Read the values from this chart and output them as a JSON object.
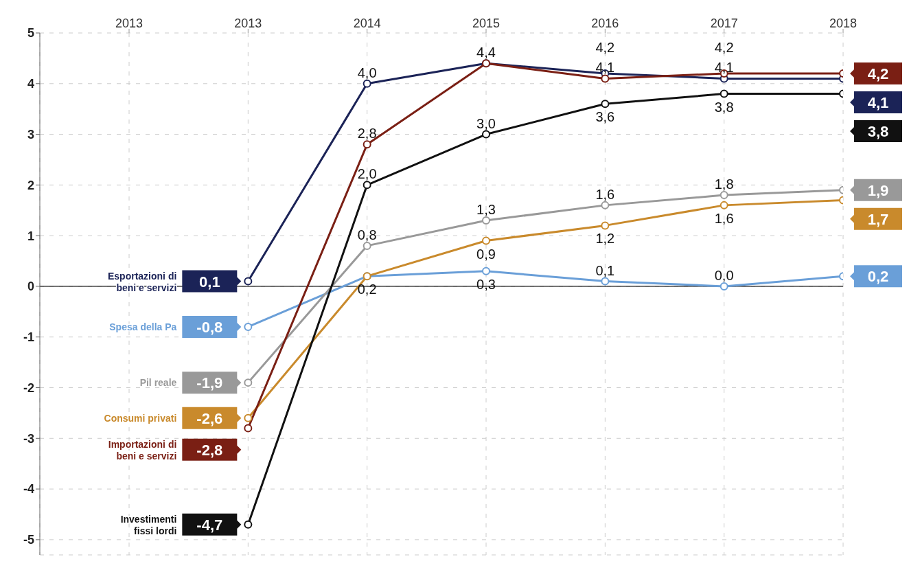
{
  "chart_data": {
    "type": "line",
    "categories": [
      "2013",
      "2013",
      "2014",
      "2015",
      "2016",
      "2017",
      "2018"
    ],
    "ylim": [
      -5.3,
      5
    ],
    "yticks": [
      -5,
      -4,
      -3,
      -2,
      -1,
      0,
      1,
      2,
      3,
      4,
      5
    ],
    "grid": true,
    "marker": "circle",
    "legend": false,
    "ref_lines": [
      {
        "axis": "y",
        "value": 0,
        "color": "#111111"
      }
    ],
    "series": [
      {
        "name": "Esportazioni di beni e servizi",
        "color": "#1b2357",
        "values": [
          null,
          0.1,
          4.0,
          4.4,
          4.2,
          4.1,
          4.1
        ],
        "value_labels": [
          null,
          "0,1",
          "4,0",
          "4,4",
          "4,2",
          "4,1",
          "4,1"
        ]
      },
      {
        "name": "Spesa della Pa",
        "color": "#6a9fd8",
        "values": [
          null,
          -0.8,
          0.2,
          0.3,
          0.1,
          0.0,
          0.2
        ],
        "value_labels": [
          null,
          "-0,8",
          "0,2",
          "0,3",
          "0,1",
          "0,0",
          "0,2"
        ]
      },
      {
        "name": "Pil reale",
        "color": "#999999",
        "values": [
          null,
          -1.9,
          0.8,
          1.3,
          1.6,
          1.8,
          1.9
        ],
        "value_labels": [
          null,
          "-1,9",
          "0,8",
          "1,3",
          "1,6",
          "1,8",
          "1,9"
        ]
      },
      {
        "name": "Consumi privati",
        "color": "#c98a2c",
        "values": [
          null,
          -2.6,
          0.2,
          0.9,
          1.2,
          1.6,
          1.7
        ],
        "value_labels": [
          null,
          "-2,6",
          null,
          "0,9",
          "1,2",
          "1,6",
          "1,7"
        ]
      },
      {
        "name": "Importazioni di beni e servizi",
        "color": "#7a1f14",
        "values": [
          null,
          -2.8,
          2.8,
          4.4,
          4.1,
          4.2,
          4.2
        ],
        "value_labels": [
          null,
          "-2,8",
          "2,8",
          null,
          "4,1",
          "4,2",
          "4,2"
        ]
      },
      {
        "name": "Investimenti fissi lordi",
        "color": "#111111",
        "values": [
          null,
          -4.7,
          2.0,
          3.0,
          3.6,
          3.8,
          3.8
        ],
        "value_labels": [
          null,
          "-4,7",
          "2,0",
          "3,0",
          "3,6",
          "3,8",
          "3,8"
        ]
      }
    ]
  }
}
